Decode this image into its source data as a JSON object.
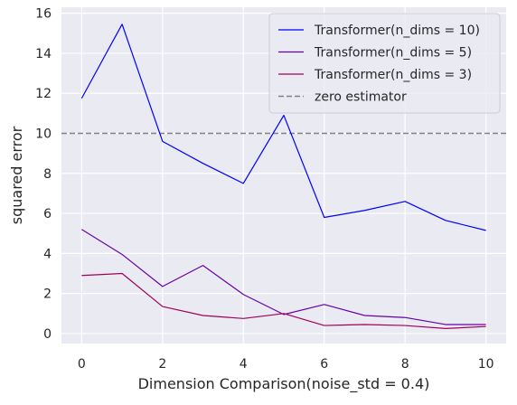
{
  "chart_data": {
    "type": "line",
    "xlabel": "Dimension Comparison(noise_std = 0.4)",
    "ylabel": "squared error",
    "xlim": [
      -0.5,
      10.5
    ],
    "ylim": [
      -0.5,
      16.3
    ],
    "xticks": [
      0,
      2,
      4,
      6,
      8,
      10
    ],
    "yticks": [
      0,
      2,
      4,
      6,
      8,
      10,
      12,
      14,
      16
    ],
    "grid": true,
    "legend_position": "top-right",
    "x": [
      0,
      1,
      2,
      3,
      4,
      5,
      6,
      7,
      8,
      9,
      10
    ],
    "series": [
      {
        "name": "Transformer(n_dims = 10)",
        "color": "#0000ff",
        "dash": "solid",
        "values": [
          11.75,
          15.45,
          9.6,
          8.5,
          7.5,
          10.9,
          5.8,
          6.15,
          6.6,
          5.65,
          5.15
        ]
      },
      {
        "name": "Transformer(n_dims = 5)",
        "color": "#6600aa",
        "dash": "solid",
        "values": [
          5.2,
          3.95,
          2.35,
          3.4,
          1.95,
          0.95,
          1.45,
          0.9,
          0.8,
          0.45,
          0.45
        ]
      },
      {
        "name": "Transformer(n_dims = 3)",
        "color": "#a0005a",
        "dash": "solid",
        "values": [
          2.9,
          3.0,
          1.35,
          0.9,
          0.75,
          1.0,
          0.4,
          0.45,
          0.4,
          0.25,
          0.35
        ]
      }
    ],
    "reference_lines": [
      {
        "name": "zero estimator",
        "orientation": "horizontal",
        "value": 10,
        "color": "#808080",
        "dash": "dashed"
      }
    ]
  }
}
